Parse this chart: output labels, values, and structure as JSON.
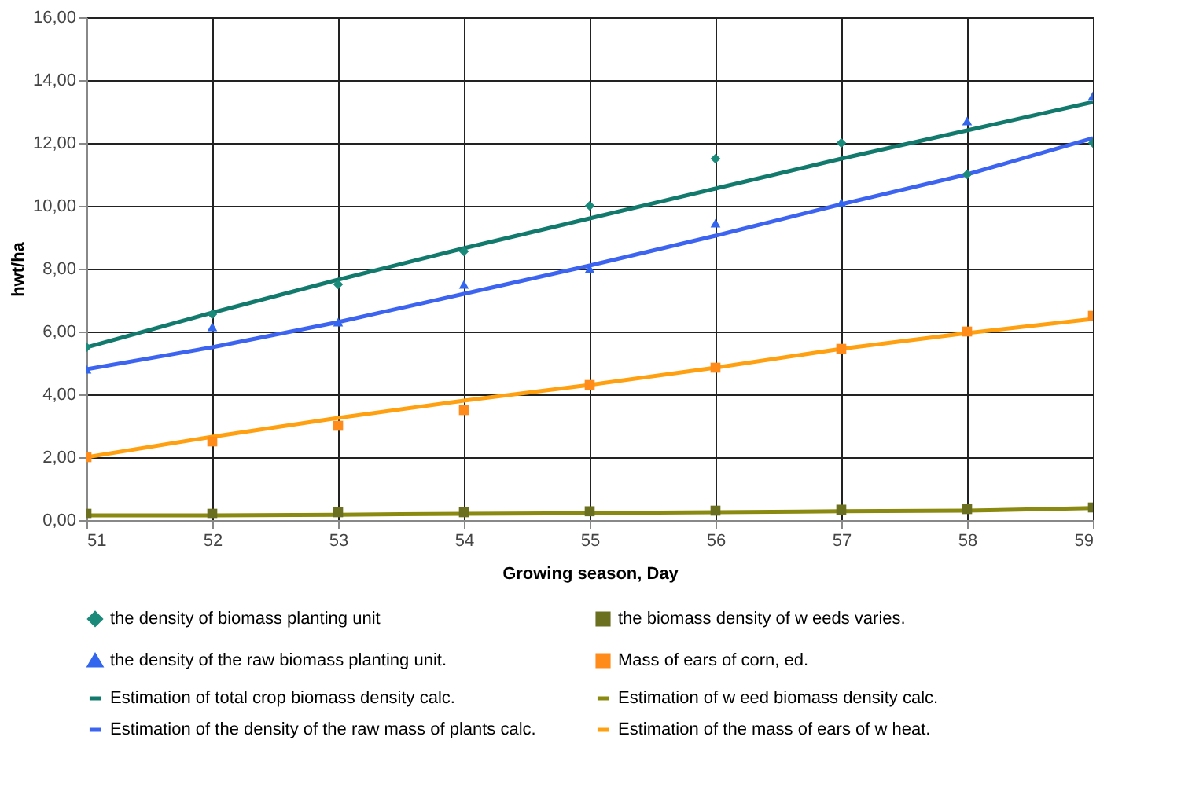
{
  "chart_data": {
    "type": "line",
    "xlabel": "Growing season, Day",
    "ylabel": "hwt/ha",
    "x": [
      51,
      52,
      53,
      54,
      55,
      56,
      57,
      58,
      59
    ],
    "xlim": [
      51,
      59
    ],
    "xticks": [
      51,
      52,
      53,
      54,
      55,
      56,
      57,
      58,
      59
    ],
    "ylim": [
      0,
      16
    ],
    "yticks": [
      {
        "value": 0,
        "label": "0,00"
      },
      {
        "value": 2,
        "label": "2,00"
      },
      {
        "value": 4,
        "label": "4,00"
      },
      {
        "value": 6,
        "label": "6,00"
      },
      {
        "value": 8,
        "label": "8,00"
      },
      {
        "value": 10,
        "label": "10,00"
      },
      {
        "value": 12,
        "label": "12,00"
      },
      {
        "value": 14,
        "label": "14,00"
      },
      {
        "value": 16,
        "label": "16,00"
      }
    ],
    "grid": true,
    "legend": "bottom",
    "series": [
      {
        "name": "the density of biomass planting unit",
        "type": "scatter",
        "marker": "diamond",
        "color": "#1a8a7a",
        "values": [
          5.5,
          6.55,
          7.5,
          8.55,
          10.0,
          11.5,
          12.0,
          11.0,
          12.0
        ]
      },
      {
        "name": "the biomass density of w eeds varies.",
        "type": "scatter",
        "marker": "square",
        "color": "#6b7020",
        "values": [
          0.2,
          0.2,
          0.25,
          0.25,
          0.28,
          0.3,
          0.33,
          0.35,
          0.4
        ]
      },
      {
        "name": "the density of the raw  biomass planting unit.",
        "type": "scatter",
        "marker": "triangle",
        "color": "#3366ee",
        "values": [
          4.8,
          6.15,
          6.3,
          7.5,
          8.0,
          9.45,
          10.1,
          12.7,
          13.5
        ]
      },
      {
        "name": "Mass of ears of corn, ed.",
        "type": "scatter",
        "marker": "square",
        "color": "#ff8c1a",
        "values": [
          2.0,
          2.5,
          3.0,
          3.5,
          4.3,
          4.85,
          5.45,
          6.0,
          6.5
        ]
      },
      {
        "name": "Estimation of total crop biomass density calc.",
        "color": "#127a6c",
        "values": [
          5.5,
          6.6,
          7.65,
          8.65,
          9.6,
          10.55,
          11.5,
          12.4,
          13.3
        ]
      },
      {
        "name": "Estimation of w eed biomass density calc.",
        "color": "#8a8a10",
        "values": [
          0.15,
          0.15,
          0.17,
          0.2,
          0.22,
          0.25,
          0.28,
          0.3,
          0.38
        ]
      },
      {
        "name": "Estimation of the density of the raw  mass of plants calc.",
        "color": "#3c64f0",
        "values": [
          4.8,
          5.5,
          6.3,
          7.2,
          8.1,
          9.05,
          10.05,
          11.0,
          12.15
        ]
      },
      {
        "name": "Estimation of the mass of ears of w heat.",
        "color": "#ffa010",
        "values": [
          2.0,
          2.65,
          3.25,
          3.8,
          4.3,
          4.85,
          5.45,
          5.95,
          6.4
        ]
      }
    ]
  }
}
